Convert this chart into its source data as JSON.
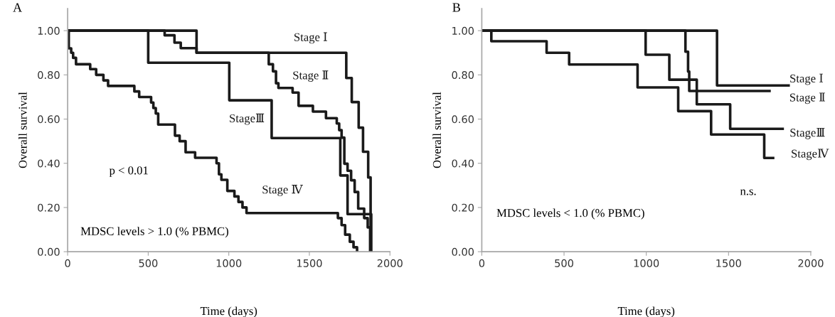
{
  "chart_data": [
    {
      "type": "step",
      "title": "A",
      "xlabel": "Time (days)",
      "ylabel": "Overall survival",
      "xlim": [
        0,
        2000
      ],
      "xticks": [
        0,
        500,
        1000,
        1500,
        2000
      ],
      "ylim": [
        0,
        1.1
      ],
      "yticks": [
        {
          "value": 0,
          "label": "0.00"
        },
        {
          "value": 0.2,
          "label": "0.20"
        },
        {
          "value": 0.4,
          "label": "0.40"
        },
        {
          "value": 0.6,
          "label": "0.60"
        },
        {
          "value": 0.8,
          "label": "0.80"
        },
        {
          "value": 1.0,
          "label": "1.00"
        }
      ],
      "grid": false,
      "marker": "none",
      "line_style": "solid",
      "series": [
        {
          "name": "Stage Ⅰ",
          "color": "#1a1a1a",
          "x": [
            0,
            800,
            1729,
            1763,
            1806,
            1833,
            1865,
            1880
          ],
          "values": [
            1.0,
            0.9,
            0.786,
            0.677,
            0.561,
            0.452,
            0.336,
            0.0
          ]
        },
        {
          "name": "Stage Ⅱ",
          "color": "#1a1a1a",
          "x": [
            0,
            602,
            663,
            702,
            800,
            1248,
            1274,
            1293,
            1308,
            1396,
            1433,
            1522,
            1603,
            1670,
            1685,
            1700,
            1717,
            1737,
            1759,
            1781,
            1803,
            1840,
            1862,
            1877
          ],
          "values": [
            1.0,
            0.979,
            0.946,
            0.921,
            0.9,
            0.848,
            0.816,
            0.762,
            0.741,
            0.72,
            0.66,
            0.634,
            0.604,
            0.58,
            0.55,
            0.516,
            0.398,
            0.366,
            0.323,
            0.27,
            0.195,
            0.152,
            0.11,
            0.0
          ]
        },
        {
          "name": "StageⅢ",
          "color": "#1a1a1a",
          "x": [
            0,
            500,
            1003,
            1266,
            1692,
            1737,
            1884
          ],
          "values": [
            1.0,
            0.855,
            0.685,
            0.514,
            0.345,
            0.17,
            0.0
          ]
        },
        {
          "name": "Stage Ⅳ",
          "color": "#1a1a1a",
          "x": [
            0,
            7,
            22,
            34,
            52,
            140,
            177,
            222,
            251,
            414,
            444,
            518,
            532,
            547,
            562,
            666,
            695,
            732,
            791,
            924,
            939,
            954,
            991,
            1035,
            1060,
            1085,
            1110,
            1677,
            1700,
            1722,
            1751,
            1774,
            1796
          ],
          "values": [
            1.0,
            0.92,
            0.9,
            0.877,
            0.848,
            0.826,
            0.8,
            0.775,
            0.75,
            0.725,
            0.7,
            0.675,
            0.65,
            0.625,
            0.575,
            0.525,
            0.5,
            0.45,
            0.425,
            0.4,
            0.35,
            0.325,
            0.275,
            0.25,
            0.225,
            0.2,
            0.175,
            0.152,
            0.12,
            0.077,
            0.045,
            0.02,
            0.0
          ]
        }
      ],
      "annotations": [
        "p < 0.01",
        "MDSC levels > 1.0 (% PBMC)"
      ]
    },
    {
      "type": "step",
      "title": "B",
      "xlabel": "Time (days)",
      "ylabel": "Overall survival",
      "xlim": [
        0,
        2000
      ],
      "xticks": [
        0,
        500,
        1000,
        1500,
        2000
      ],
      "ylim": [
        0,
        1.1
      ],
      "yticks": [
        {
          "value": 0,
          "label": "0.00"
        },
        {
          "value": 0.2,
          "label": "0.20"
        },
        {
          "value": 0.4,
          "label": "0.40"
        },
        {
          "value": 0.6,
          "label": "0.60"
        },
        {
          "value": 0.8,
          "label": "0.80"
        },
        {
          "value": 1.0,
          "label": "1.00"
        }
      ],
      "grid": false,
      "marker": "none",
      "line_style": "solid",
      "series": [
        {
          "name": "Stage Ⅰ",
          "color": "#1a1a1a",
          "x": [
            0,
            1430,
            1865
          ],
          "values": [
            1.0,
            0.752,
            0.752
          ]
        },
        {
          "name": "Stage Ⅱ",
          "color": "#1a1a1a",
          "x": [
            0,
            1238,
            1254,
            1261,
            1749
          ],
          "values": [
            1.0,
            0.905,
            0.815,
            0.727,
            0.727
          ]
        },
        {
          "name": "StageⅢ",
          "color": "#1a1a1a",
          "x": [
            0,
            996,
            1140,
            1307,
            1510,
            1829
          ],
          "values": [
            1.0,
            0.891,
            0.778,
            0.667,
            0.556,
            0.556
          ]
        },
        {
          "name": "StageⅣ",
          "color": "#1a1a1a",
          "x": [
            0,
            58,
            394,
            531,
            947,
            1194,
            1394,
            1717,
            1771
          ],
          "values": [
            1.0,
            0.952,
            0.9,
            0.847,
            0.743,
            0.636,
            0.53,
            0.424,
            0.424
          ]
        }
      ],
      "annotations": [
        "n.s.",
        "MDSC levels < 1.0 (% PBMC)"
      ]
    }
  ]
}
